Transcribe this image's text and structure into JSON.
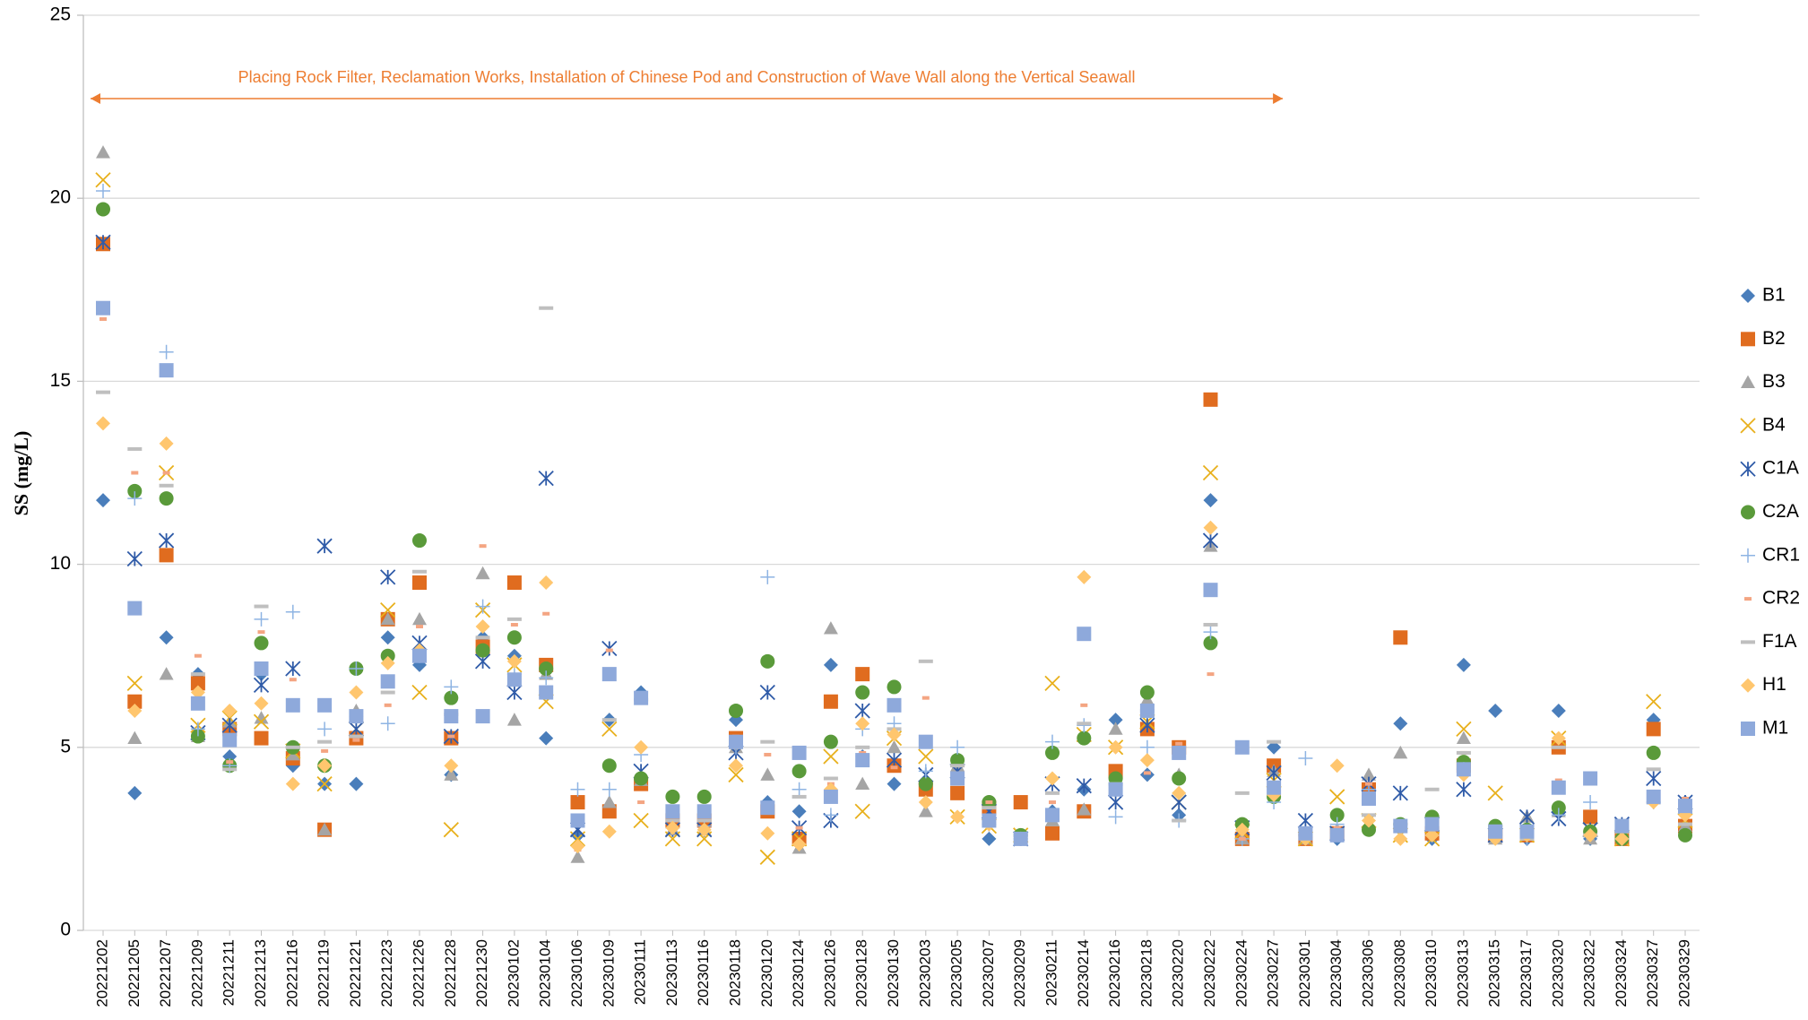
{
  "chart_data": {
    "type": "scatter",
    "y_label": "SS (mg/L)",
    "annotation": "Placing Rock Filter, Reclamation Works, Installation of Chinese Pod and Construction of Wave Wall along the Vertical Seawall",
    "annotation_color": "#ed7d31",
    "categories": [
      "20221202",
      "20221205",
      "20221207",
      "20221209",
      "20221211",
      "20221213",
      "20221216",
      "20221219",
      "20221221",
      "20221223",
      "20221226",
      "20221228",
      "20221230",
      "20230102",
      "20230104",
      "20230106",
      "20230109",
      "20230111",
      "20230113",
      "20230116",
      "20230118",
      "20230120",
      "20230124",
      "20230126",
      "20230128",
      "20230130",
      "20230203",
      "20230205",
      "20230207",
      "20230209",
      "20230211",
      "20230214",
      "20230216",
      "20230218",
      "20230220",
      "20230222",
      "20230224",
      "20230227",
      "20230301",
      "20230304",
      "20230306",
      "20230308",
      "20230310",
      "20230313",
      "20230315",
      "20230317",
      "20230320",
      "20230322",
      "20230324",
      "20230327",
      "20230329"
    ],
    "ylim": [
      0,
      25
    ],
    "yticks": [
      0,
      5,
      10,
      15,
      20,
      25
    ],
    "grid": true,
    "series": [
      {
        "name": "B1",
        "marker": "diamond",
        "color": "#4a7ebb",
        "values": [
          11.75,
          3.75,
          8.0,
          7.0,
          4.75,
          7.0,
          4.5,
          4.0,
          4.0,
          8.0,
          7.25,
          4.25,
          8.0,
          7.5,
          5.25,
          2.6,
          5.75,
          6.5,
          3.0,
          3.0,
          5.75,
          3.5,
          3.25,
          7.25,
          4.75,
          4.0,
          4.0,
          4.5,
          2.5,
          2.5,
          3.25,
          3.85,
          5.75,
          4.25,
          3.15,
          11.75,
          2.65,
          5.0,
          2.5,
          2.5,
          3.85,
          5.65,
          2.5,
          7.25,
          6.0,
          2.5,
          6.0,
          2.5,
          2.5,
          5.75,
          3.5
        ]
      },
      {
        "name": "B2",
        "marker": "square",
        "color": "#e06c1f",
        "values": [
          18.75,
          6.25,
          10.25,
          6.75,
          5.5,
          5.25,
          4.7,
          2.75,
          5.25,
          8.5,
          9.5,
          5.25,
          7.75,
          9.5,
          7.25,
          3.5,
          3.25,
          4.0,
          3.0,
          3.0,
          5.25,
          3.25,
          2.5,
          6.25,
          7.0,
          4.5,
          3.85,
          3.75,
          3.35,
          3.5,
          2.65,
          3.25,
          4.35,
          5.5,
          5.0,
          14.5,
          2.5,
          4.5,
          2.5,
          2.65,
          3.85,
          8.0,
          2.65,
          4.5,
          2.6,
          2.6,
          5.0,
          3.1,
          2.5,
          5.5,
          2.85
        ]
      },
      {
        "name": "B3",
        "marker": "triangle",
        "color": "#a5a5a5",
        "values": [
          21.25,
          5.25,
          7.0,
          5.3,
          5.7,
          5.8,
          4.8,
          2.75,
          6.0,
          8.5,
          8.5,
          4.25,
          9.75,
          5.75,
          7.0,
          2.0,
          3.5,
          4.1,
          2.75,
          2.75,
          5.0,
          4.25,
          2.25,
          8.25,
          4.0,
          5.0,
          3.25,
          4.5,
          3.1,
          2.6,
          3.0,
          3.3,
          5.5,
          6.3,
          4.25,
          10.5,
          2.5,
          4.35,
          2.5,
          2.75,
          4.25,
          4.85,
          2.9,
          5.25,
          2.5,
          3.1,
          3.25,
          2.5,
          2.6,
          3.6,
          2.85
        ]
      },
      {
        "name": "B4",
        "marker": "x",
        "color": "#e8b01c",
        "values": [
          20.5,
          6.75,
          12.5,
          5.6,
          5.8,
          5.7,
          4.9,
          4.0,
          5.5,
          8.75,
          6.5,
          2.75,
          8.75,
          7.25,
          6.25,
          2.5,
          5.5,
          3.0,
          2.5,
          2.5,
          4.25,
          2.0,
          2.5,
          4.75,
          3.25,
          5.25,
          4.75,
          3.1,
          2.85,
          2.6,
          6.75,
          5.35,
          5.0,
          5.7,
          3.5,
          12.5,
          2.7,
          4.1,
          2.5,
          3.65,
          3.0,
          2.6,
          2.5,
          5.5,
          3.75,
          2.6,
          5.25,
          2.75,
          2.5,
          6.25,
          3.0
        ]
      },
      {
        "name": "C1A",
        "marker": "asterisk",
        "color": "#2f5ba8",
        "values": [
          18.8,
          10.15,
          10.65,
          5.4,
          5.6,
          6.7,
          7.15,
          10.5,
          5.5,
          9.65,
          7.85,
          5.3,
          7.35,
          6.5,
          12.35,
          2.75,
          7.7,
          4.35,
          2.75,
          2.75,
          4.85,
          6.5,
          2.8,
          3.0,
          6.0,
          4.65,
          4.25,
          4.35,
          3.25,
          2.5,
          4.0,
          3.95,
          3.5,
          5.6,
          3.5,
          10.65,
          2.8,
          4.3,
          3.0,
          2.65,
          4.0,
          3.75,
          2.9,
          3.85,
          2.6,
          3.1,
          3.05,
          2.75,
          2.9,
          4.15,
          3.5
        ]
      },
      {
        "name": "C2A",
        "marker": "circle",
        "color": "#5a9a3a",
        "values": [
          19.7,
          12.0,
          11.8,
          5.3,
          4.5,
          7.85,
          5.0,
          4.5,
          7.15,
          7.5,
          10.65,
          6.35,
          7.65,
          8.0,
          7.15,
          3.0,
          4.5,
          4.15,
          3.65,
          3.65,
          6.0,
          7.35,
          4.35,
          5.15,
          6.5,
          6.65,
          4.0,
          4.65,
          3.5,
          2.6,
          4.85,
          5.25,
          4.15,
          6.5,
          4.15,
          7.85,
          2.9,
          3.65,
          2.6,
          3.15,
          2.75,
          2.9,
          3.1,
          4.6,
          2.85,
          2.75,
          3.35,
          2.7,
          2.5,
          4.85,
          2.6
        ]
      },
      {
        "name": "CR1",
        "marker": "plus",
        "color": "#8eb4e3",
        "values": [
          20.2,
          11.8,
          15.8,
          5.5,
          4.5,
          8.5,
          8.7,
          5.5,
          7.15,
          5.65,
          7.5,
          6.65,
          8.85,
          7.0,
          6.9,
          3.85,
          3.85,
          4.8,
          2.8,
          2.85,
          5.0,
          9.65,
          3.85,
          3.15,
          5.5,
          5.65,
          4.35,
          5.0,
          2.9,
          2.5,
          5.15,
          5.6,
          3.1,
          5.0,
          3.0,
          8.15,
          2.5,
          3.5,
          4.7,
          2.9,
          3.85,
          2.8,
          2.6,
          4.4,
          2.6,
          2.5,
          3.15,
          3.5,
          2.5,
          3.5,
          3.2
        ]
      },
      {
        "name": "CR2",
        "marker": "dash-short",
        "color": "#f4a582",
        "values": [
          16.7,
          12.5,
          12.5,
          7.5,
          4.6,
          8.15,
          6.85,
          4.9,
          5.2,
          6.15,
          8.3,
          5.3,
          10.5,
          8.35,
          8.65,
          2.2,
          7.65,
          3.5,
          3.0,
          3.0,
          5.3,
          4.8,
          2.8,
          4.0,
          4.85,
          4.45,
          6.35,
          3.15,
          3.5,
          2.5,
          3.5,
          6.15,
          3.85,
          4.3,
          5.1,
          7.0,
          2.5,
          3.85,
          2.5,
          2.8,
          4.0,
          2.8,
          2.6,
          4.85,
          2.65,
          2.75,
          4.1,
          4.1,
          2.5,
          3.6,
          3.6
        ]
      },
      {
        "name": "F1A",
        "marker": "dash",
        "color": "#bfbfbf",
        "values": [
          14.7,
          13.15,
          12.15,
          7.0,
          4.4,
          8.85,
          5.0,
          5.15,
          5.3,
          6.5,
          9.8,
          5.9,
          8.0,
          8.5,
          17.0,
          3.0,
          5.75,
          6.3,
          3.0,
          3.0,
          5.0,
          5.15,
          3.65,
          4.15,
          5.0,
          5.5,
          7.35,
          4.5,
          3.35,
          2.6,
          3.75,
          5.65,
          4.0,
          6.0,
          3.0,
          8.35,
          3.75,
          5.15,
          2.6,
          2.6,
          3.15,
          2.9,
          3.85,
          4.85,
          2.65,
          2.5,
          5.0,
          2.6,
          2.7,
          4.4,
          2.9
        ]
      },
      {
        "name": "H1",
        "marker": "diamond",
        "color": "#ffc66e",
        "values": [
          13.85,
          6.0,
          13.3,
          6.5,
          6.0,
          6.2,
          4.0,
          4.5,
          6.5,
          7.3,
          7.65,
          4.5,
          8.3,
          7.35,
          9.5,
          2.3,
          2.7,
          5.0,
          2.8,
          2.75,
          4.5,
          2.65,
          2.35,
          3.85,
          5.65,
          5.35,
          3.5,
          3.1,
          2.9,
          2.5,
          4.15,
          9.65,
          5.0,
          4.65,
          3.75,
          11.0,
          2.75,
          3.7,
          2.5,
          4.5,
          3.0,
          2.5,
          2.6,
          4.25,
          2.5,
          2.6,
          5.25,
          2.6,
          2.5,
          3.5,
          3.15
        ]
      },
      {
        "name": "M1",
        "marker": "square",
        "color": "#8ea9db",
        "values": [
          17.0,
          8.8,
          15.3,
          6.2,
          5.2,
          7.15,
          6.15,
          6.15,
          5.85,
          6.8,
          7.5,
          5.85,
          5.85,
          6.85,
          6.5,
          3.0,
          7.0,
          6.35,
          3.25,
          3.25,
          5.15,
          3.35,
          4.85,
          3.65,
          4.65,
          6.15,
          5.15,
          4.15,
          3.0,
          2.5,
          3.15,
          8.1,
          3.85,
          6.0,
          4.85,
          9.3,
          5.0,
          3.9,
          2.65,
          2.6,
          3.6,
          2.85,
          2.9,
          4.4,
          2.7,
          2.7,
          3.9,
          4.15,
          2.85,
          3.65,
          3.4
        ]
      }
    ]
  }
}
